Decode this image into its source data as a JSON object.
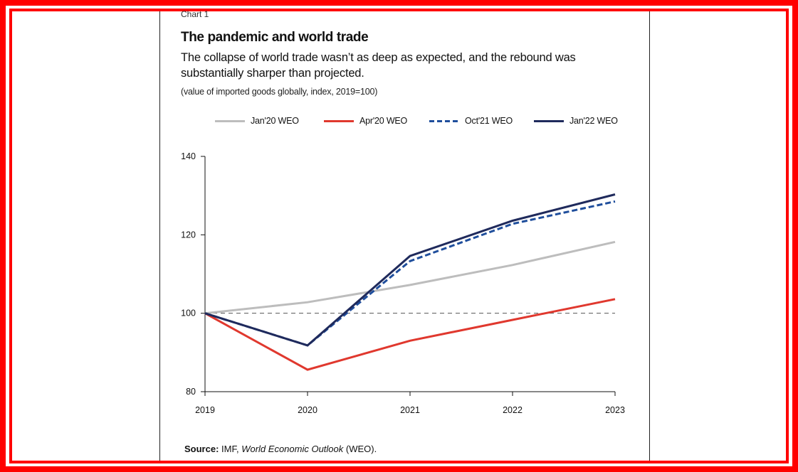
{
  "chart_data": {
    "type": "line",
    "chart_label": "Chart 1",
    "title": "The pandemic and world trade",
    "subtitle": "The collapse of world trade wasn’t as deep as expected, and the rebound was substantially sharper than projected.",
    "units": "(value of imported goods globally, index, 2019=100)",
    "x": [
      "2019",
      "2020",
      "2021",
      "2022",
      "2023"
    ],
    "y_ticks": [
      "80",
      "100",
      "120",
      "140"
    ],
    "ylim": [
      80,
      140
    ],
    "reference_line": 100,
    "legend_position": "top",
    "series": [
      {
        "name": "Jan'20 WEO",
        "values": [
          100,
          102.8,
          107.2,
          112.3,
          118.2
        ],
        "color": "#bdbdbd",
        "style": "solid"
      },
      {
        "name": "Apr'20 WEO",
        "values": [
          100,
          85.6,
          93.0,
          98.3,
          103.6
        ],
        "color": "#e0382e",
        "style": "solid"
      },
      {
        "name": "Oct'21 WEO",
        "values": [
          100,
          91.8,
          113.3,
          122.8,
          128.5
        ],
        "color": "#1f4e9c",
        "style": "dashed"
      },
      {
        "name": "Jan'22 WEO",
        "values": [
          100,
          91.8,
          114.6,
          123.6,
          130.3
        ],
        "color": "#1f2a5c",
        "style": "solid"
      }
    ],
    "source_label": "Source:",
    "source_text_1": "IMF,",
    "source_italic": "World Economic Outlook",
    "source_text_2": "(WEO)."
  }
}
